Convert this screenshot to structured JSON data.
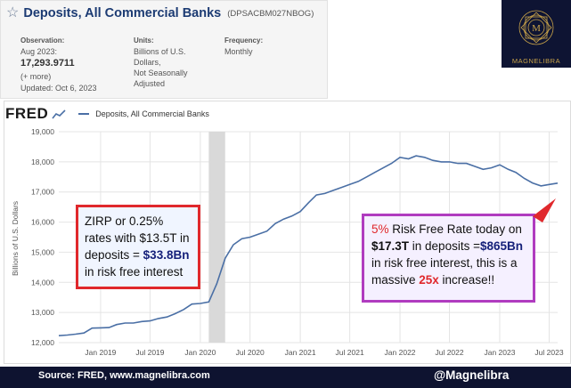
{
  "header": {
    "title": "Deposits, All Commercial Banks",
    "series_code": "(DPSACBM027NBOG)",
    "observation_label": "Observation:",
    "observation_date": "Aug 2023:",
    "observation_value": "17,293.9711",
    "more_link": "(+ more)",
    "updated": "Updated: Oct 6, 2023",
    "units_label": "Units:",
    "units_lines": [
      "Billions of U.S.",
      "Dollars,",
      "Not Seasonally",
      "Adjusted"
    ],
    "frequency_label": "Frequency:",
    "frequency_value": "Monthly"
  },
  "logo": {
    "text": "MAGNELIBRA",
    "monogram": "M"
  },
  "fred": {
    "logo_text": "FRED",
    "legend": "Deposits, All Commercial Banks"
  },
  "annotations": {
    "left": {
      "p1": "ZIRP or 0.25% rates with $13.5T in deposits = ",
      "p2": "$33.8Bn",
      "p3": " in risk free interest"
    },
    "right": {
      "p1": "5%",
      "p2": " Risk Free Rate today on ",
      "p3": "$17.3T",
      "p4": " in deposits =",
      "p5": "$865Bn",
      "p6": " in risk free interest, this is a massive ",
      "p7": "25x",
      "p8": " increase!!"
    }
  },
  "footer": {
    "source": "Source: FRED, www.magnelibra.com",
    "handle": "@Magnelibra"
  },
  "colors": {
    "line": "#4a6fa5",
    "recession": "#d9d9d9",
    "annotation_red": "#e0282c",
    "annotation_purple": "#b03cbf",
    "footer_bg": "#0e1330"
  },
  "chart_data": {
    "type": "line",
    "title": "Deposits, All Commercial Banks",
    "ylabel": "Billions of U.S. Dollars",
    "ylim": [
      12000,
      19000
    ],
    "yticks": [
      12000,
      13000,
      14000,
      15000,
      16000,
      17000,
      18000,
      19000
    ],
    "ytick_labels": [
      "12,000",
      "13,000",
      "14,000",
      "15,000",
      "16,000",
      "17,000",
      "18,000",
      "19,000"
    ],
    "xlim": [
      "2018-08-01",
      "2023-08-01"
    ],
    "xticks": [
      "2019-01-01",
      "2019-07-01",
      "2020-01-01",
      "2020-07-01",
      "2021-01-01",
      "2021-07-01",
      "2022-01-01",
      "2022-07-01",
      "2023-01-01",
      "2023-07-01"
    ],
    "xtick_labels": [
      "Jan 2019",
      "Jul 2019",
      "Jan 2020",
      "Jul 2020",
      "Jan 2021",
      "Jul 2021",
      "Jan 2022",
      "Jul 2022",
      "Jan 2023",
      "Jul 2023"
    ],
    "grid": true,
    "legend": "top-left",
    "recession": [
      "2020-02-01",
      "2020-04-01"
    ],
    "series": [
      {
        "name": "Deposits, All Commercial Banks",
        "x": [
          "2018-08-01",
          "2018-09-01",
          "2018-10-01",
          "2018-11-01",
          "2018-12-01",
          "2019-01-01",
          "2019-02-01",
          "2019-03-01",
          "2019-04-01",
          "2019-05-01",
          "2019-06-01",
          "2019-07-01",
          "2019-08-01",
          "2019-09-01",
          "2019-10-01",
          "2019-11-01",
          "2019-12-01",
          "2020-01-01",
          "2020-02-01",
          "2020-03-01",
          "2020-04-01",
          "2020-05-01",
          "2020-06-01",
          "2020-07-01",
          "2020-08-01",
          "2020-09-01",
          "2020-10-01",
          "2020-11-01",
          "2020-12-01",
          "2021-01-01",
          "2021-02-01",
          "2021-03-01",
          "2021-04-01",
          "2021-05-01",
          "2021-06-01",
          "2021-07-01",
          "2021-08-01",
          "2021-09-01",
          "2021-10-01",
          "2021-11-01",
          "2021-12-01",
          "2022-01-01",
          "2022-02-01",
          "2022-03-01",
          "2022-04-01",
          "2022-05-01",
          "2022-06-01",
          "2022-07-01",
          "2022-08-01",
          "2022-09-01",
          "2022-10-01",
          "2022-11-01",
          "2022-12-01",
          "2023-01-01",
          "2023-02-01",
          "2023-03-01",
          "2023-04-01",
          "2023-05-01",
          "2023-06-01",
          "2023-07-01",
          "2023-08-01"
        ],
        "values": [
          12230,
          12250,
          12280,
          12320,
          12480,
          12490,
          12500,
          12600,
          12650,
          12650,
          12700,
          12720,
          12800,
          12850,
          12960,
          13100,
          13280,
          13300,
          13350,
          13950,
          14800,
          15250,
          15450,
          15500,
          15600,
          15700,
          15950,
          16100,
          16200,
          16350,
          16650,
          16900,
          16950,
          17050,
          17150,
          17250,
          17350,
          17500,
          17650,
          17800,
          17950,
          18150,
          18100,
          18200,
          18150,
          18050,
          18000,
          18000,
          17950,
          17950,
          17850,
          17750,
          17800,
          17900,
          17750,
          17650,
          17450,
          17300,
          17200,
          17250,
          17294
        ]
      }
    ]
  }
}
